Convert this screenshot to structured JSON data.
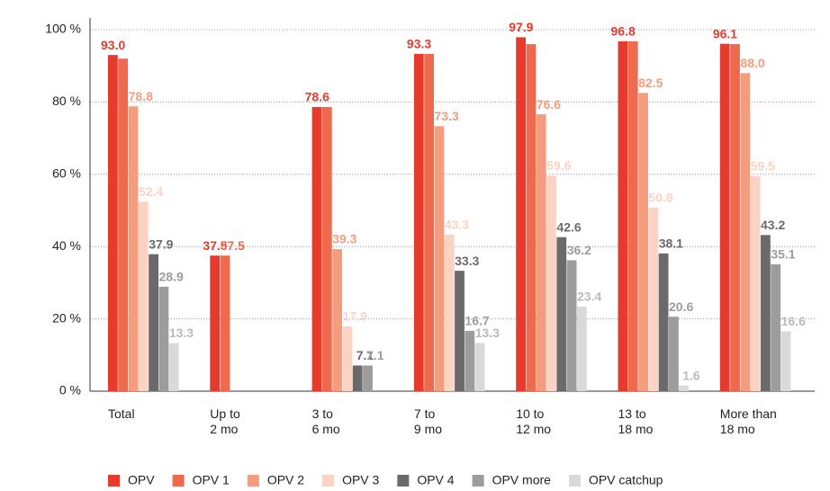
{
  "chart_data": {
    "type": "bar",
    "categories": [
      "Total",
      "Up to\n2 mo",
      "3 to\n6 mo",
      "7 to\n9 mo",
      "10 to\n12 mo",
      "13 to\n18 mo",
      "More than\n18 mo"
    ],
    "series": [
      {
        "name": "OPV",
        "color": "#e63a2c",
        "values": [
          93.0,
          37.5,
          78.6,
          93.3,
          97.9,
          96.8,
          96.1
        ],
        "value_labels": [
          "93.0",
          "37.5",
          "78.6",
          "93.3",
          "97.9",
          "96.8",
          "96.1"
        ]
      },
      {
        "name": "OPV 1",
        "color": "#ee6a4e",
        "values": [
          92,
          37.5,
          78.6,
          93.3,
          96,
          96.8,
          96
        ],
        "value_labels": [
          null,
          "37.5",
          null,
          null,
          null,
          null,
          null
        ]
      },
      {
        "name": "OPV 2",
        "color": "#f39c7e",
        "values": [
          78.8,
          null,
          39.3,
          73.3,
          76.6,
          82.5,
          88.0
        ],
        "value_labels": [
          "78.8",
          null,
          "39.3",
          "73.3",
          "76.6",
          "82.5",
          "88.0"
        ]
      },
      {
        "name": "OPV 3",
        "color": "#fad3c4",
        "values": [
          52.4,
          null,
          17.9,
          43.3,
          59.6,
          50.8,
          59.5
        ],
        "value_labels": [
          "52.4",
          null,
          "17.9",
          "43.3",
          "59.6",
          "50.8",
          "59.5"
        ]
      },
      {
        "name": "OPV 4",
        "color": "#6a6a6a",
        "values": [
          37.9,
          null,
          7.1,
          33.3,
          42.6,
          38.1,
          43.2
        ],
        "value_labels": [
          "37.9",
          null,
          "7.1",
          "33.3",
          "42.6",
          "38.1",
          "43.2"
        ]
      },
      {
        "name": "OPV more",
        "color": "#9c9c9c",
        "values": [
          28.9,
          null,
          7.1,
          16.7,
          36.2,
          20.6,
          35.1
        ],
        "value_labels": [
          "28.9",
          null,
          "7.1",
          "16.7",
          "36.2",
          "20.6",
          "35.1"
        ]
      },
      {
        "name": "OPV catchup",
        "color": "#d9d9d9",
        "values": [
          13.3,
          null,
          null,
          13.3,
          23.4,
          1.6,
          16.6
        ],
        "value_labels": [
          "13.3",
          null,
          null,
          "13.3",
          "23.4",
          "1.6",
          "16.6"
        ]
      }
    ],
    "ylim": [
      0,
      100
    ],
    "yticks": [
      {
        "value": 0,
        "label": "0 %"
      },
      {
        "value": 20,
        "label": "20 %"
      },
      {
        "value": 40,
        "label": "40 %"
      },
      {
        "value": 60,
        "label": "60 %"
      },
      {
        "value": 80,
        "label": "80 %"
      },
      {
        "value": 100,
        "label": "100 %"
      }
    ],
    "grid": true,
    "legend": "bottom"
  }
}
